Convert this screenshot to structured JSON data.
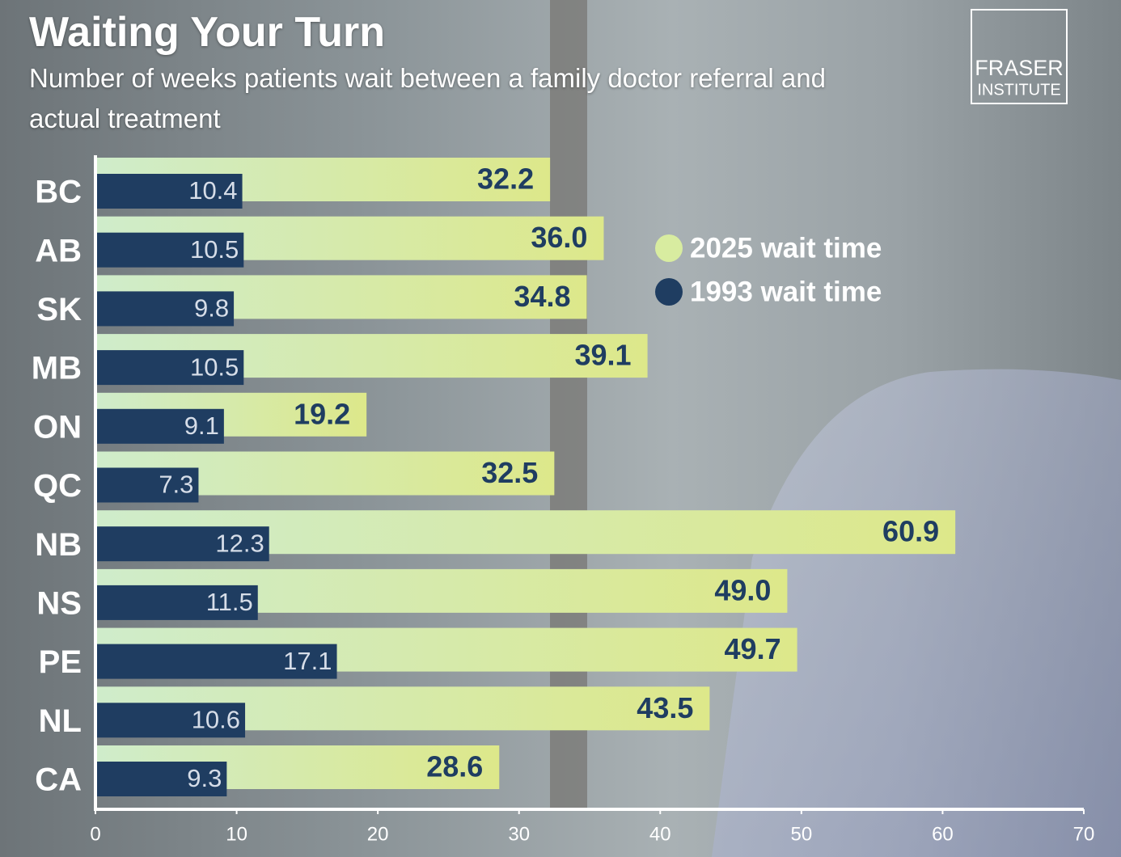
{
  "chart_data": {
    "type": "bar",
    "orientation": "horizontal",
    "title": "Waiting Your Turn",
    "subtitle": "Number of weeks patients wait between a family doctor referral and actual treatment",
    "logo": [
      "FRASER",
      "INSTITUTE"
    ],
    "categories": [
      "BC",
      "AB",
      "SK",
      "MB",
      "ON",
      "QC",
      "NB",
      "NS",
      "PE",
      "NL",
      "CA"
    ],
    "series": [
      {
        "name": "2025 wait time",
        "color": "#d8eca0",
        "values": [
          32.2,
          36.0,
          34.8,
          39.1,
          19.2,
          32.5,
          60.9,
          49.0,
          49.7,
          43.5,
          28.6
        ],
        "value_labels": [
          "32.2",
          "36.0",
          "34.8",
          "39.1",
          "19.2",
          "32.5",
          "60.9",
          "49.0",
          "49.7",
          "43.5",
          "28.6"
        ]
      },
      {
        "name": "1993 wait time",
        "color": "#1f3d61",
        "values": [
          10.4,
          10.5,
          9.8,
          10.5,
          9.1,
          7.3,
          12.3,
          11.5,
          17.1,
          10.6,
          9.3
        ],
        "value_labels": [
          "10.4",
          "10.5",
          "9.8",
          "10.5",
          "9.1",
          "7.3",
          "12.3",
          "11.5",
          "17.1",
          "10.6",
          "9.3"
        ]
      }
    ],
    "xlim": [
      0,
      70
    ],
    "xticks": [
      0,
      10,
      20,
      30,
      40,
      50,
      60,
      70
    ],
    "grid": false
  }
}
